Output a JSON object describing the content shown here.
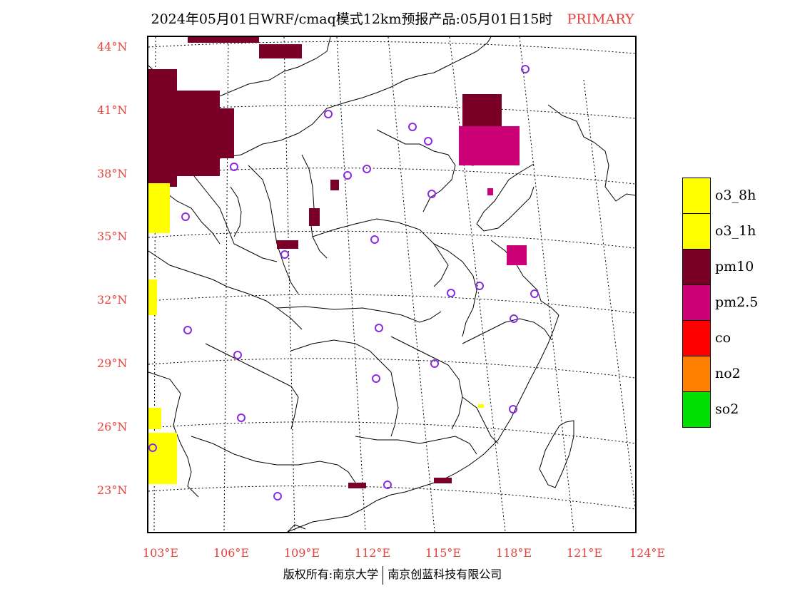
{
  "title": {
    "main": "2024年05月01日WRF/cmaq模式12km预报产品:05月01日15时",
    "tag": "PRIMARY"
  },
  "colors": {
    "accent_red": "#e8413b",
    "o3_8h": "#ffff00",
    "o3_1h": "#ffff00",
    "pm10": "#7a0028",
    "pm25": "#cc0077",
    "co": "#ff0000",
    "no2": "#ff8000",
    "so2": "#00e000",
    "station_marker": "#8a2be2"
  },
  "latitude_labels": [
    "44°N",
    "41°N",
    "38°N",
    "35°N",
    "32°N",
    "29°N",
    "26°N",
    "23°N"
  ],
  "longitude_labels": [
    "103°E",
    "106°E",
    "109°E",
    "112°E",
    "115°E",
    "118°E",
    "121°E",
    "124°E"
  ],
  "legend": [
    {
      "label": "o3_8h",
      "color": "#ffff00"
    },
    {
      "label": "o3_1h",
      "color": "#ffff00"
    },
    {
      "label": "pm10",
      "color": "#7a0028"
    },
    {
      "label": "pm2.5",
      "color": "#cc0077"
    },
    {
      "label": "co",
      "color": "#ff0000"
    },
    {
      "label": "no2",
      "color": "#ff8000"
    },
    {
      "label": "so2",
      "color": "#00e000"
    }
  ],
  "footer": {
    "left": "版权所有:南京大学",
    "right": "南京创蓝科技有限公司"
  }
}
